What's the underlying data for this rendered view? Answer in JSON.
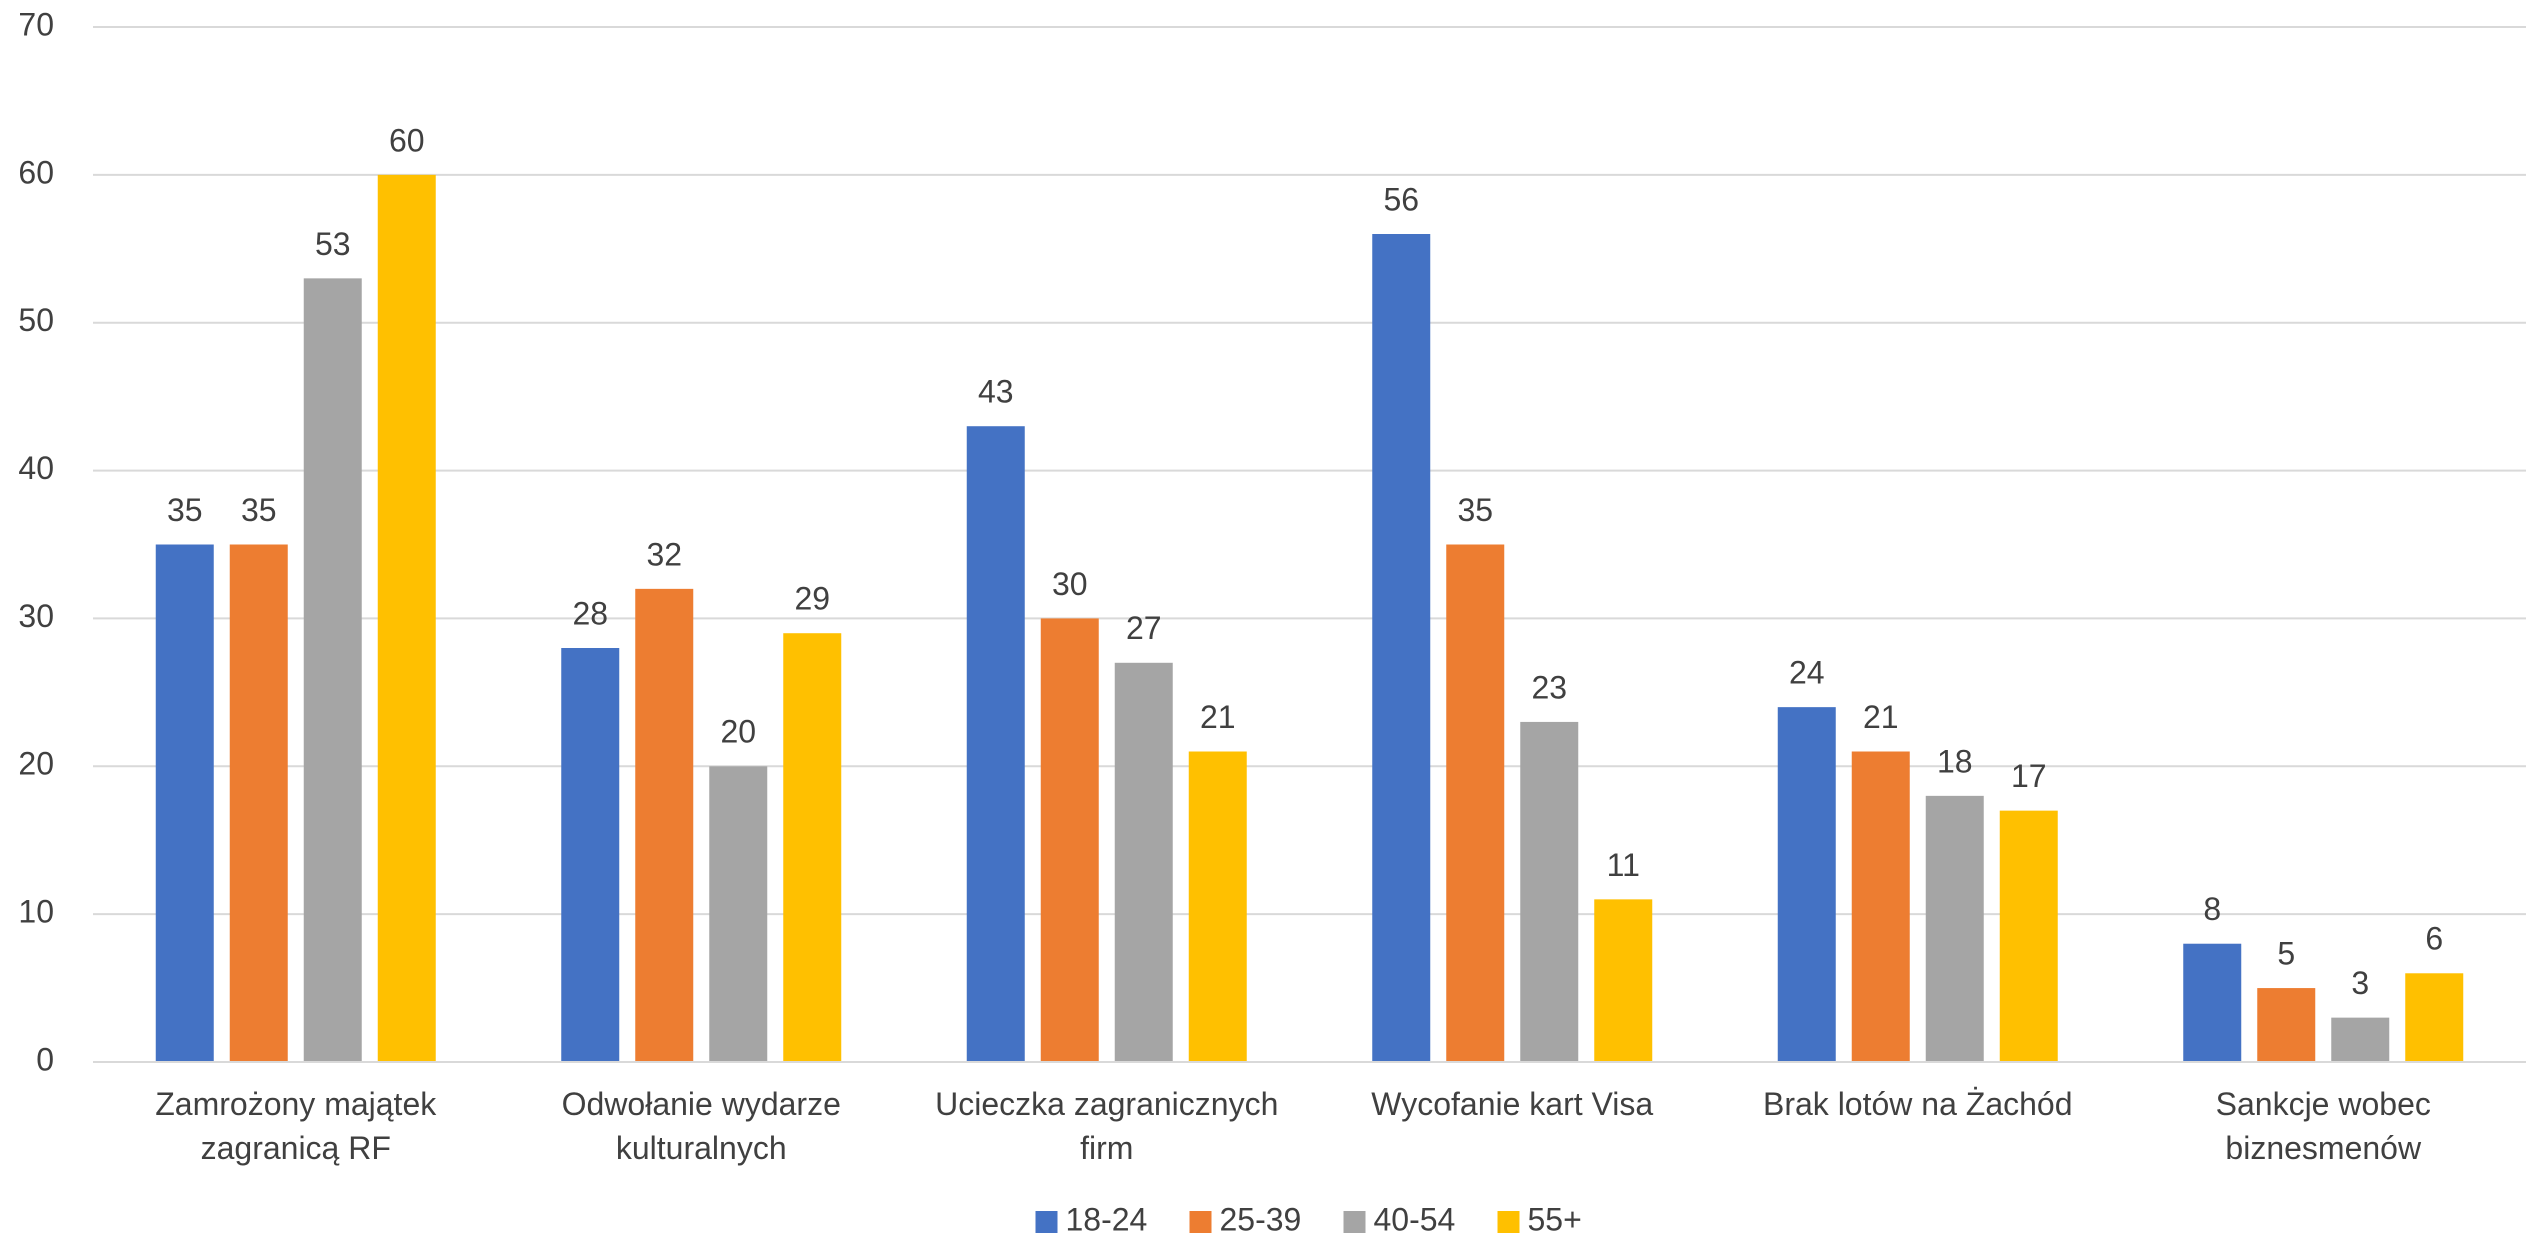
{
  "chart_data": {
    "type": "bar",
    "categories": [
      "Zamrożony majątek zagranicą RF",
      "Odwołanie wydarze kulturalnych",
      "Ucieczka zagranicznych firm",
      "Wycofanie kart Visa",
      "Brak lotów na Żachód",
      "Sankcje wobec biznesmenów"
    ],
    "series": [
      {
        "name": "18-24",
        "color": "#4472c4",
        "values": [
          35,
          28,
          43,
          56,
          24,
          8
        ]
      },
      {
        "name": "25-39",
        "color": "#ed7d31",
        "values": [
          35,
          32,
          30,
          35,
          21,
          5
        ]
      },
      {
        "name": "40-54",
        "color": "#a5a5a5",
        "values": [
          53,
          20,
          27,
          23,
          18,
          3
        ]
      },
      {
        "name": "55+",
        "color": "#ffc000",
        "values": [
          60,
          29,
          21,
          11,
          17,
          6
        ]
      }
    ],
    "ylim": [
      0,
      70
    ],
    "yticks": [
      0,
      10,
      20,
      30,
      40,
      50,
      60,
      70
    ],
    "grid": true,
    "legend": "bottom"
  }
}
